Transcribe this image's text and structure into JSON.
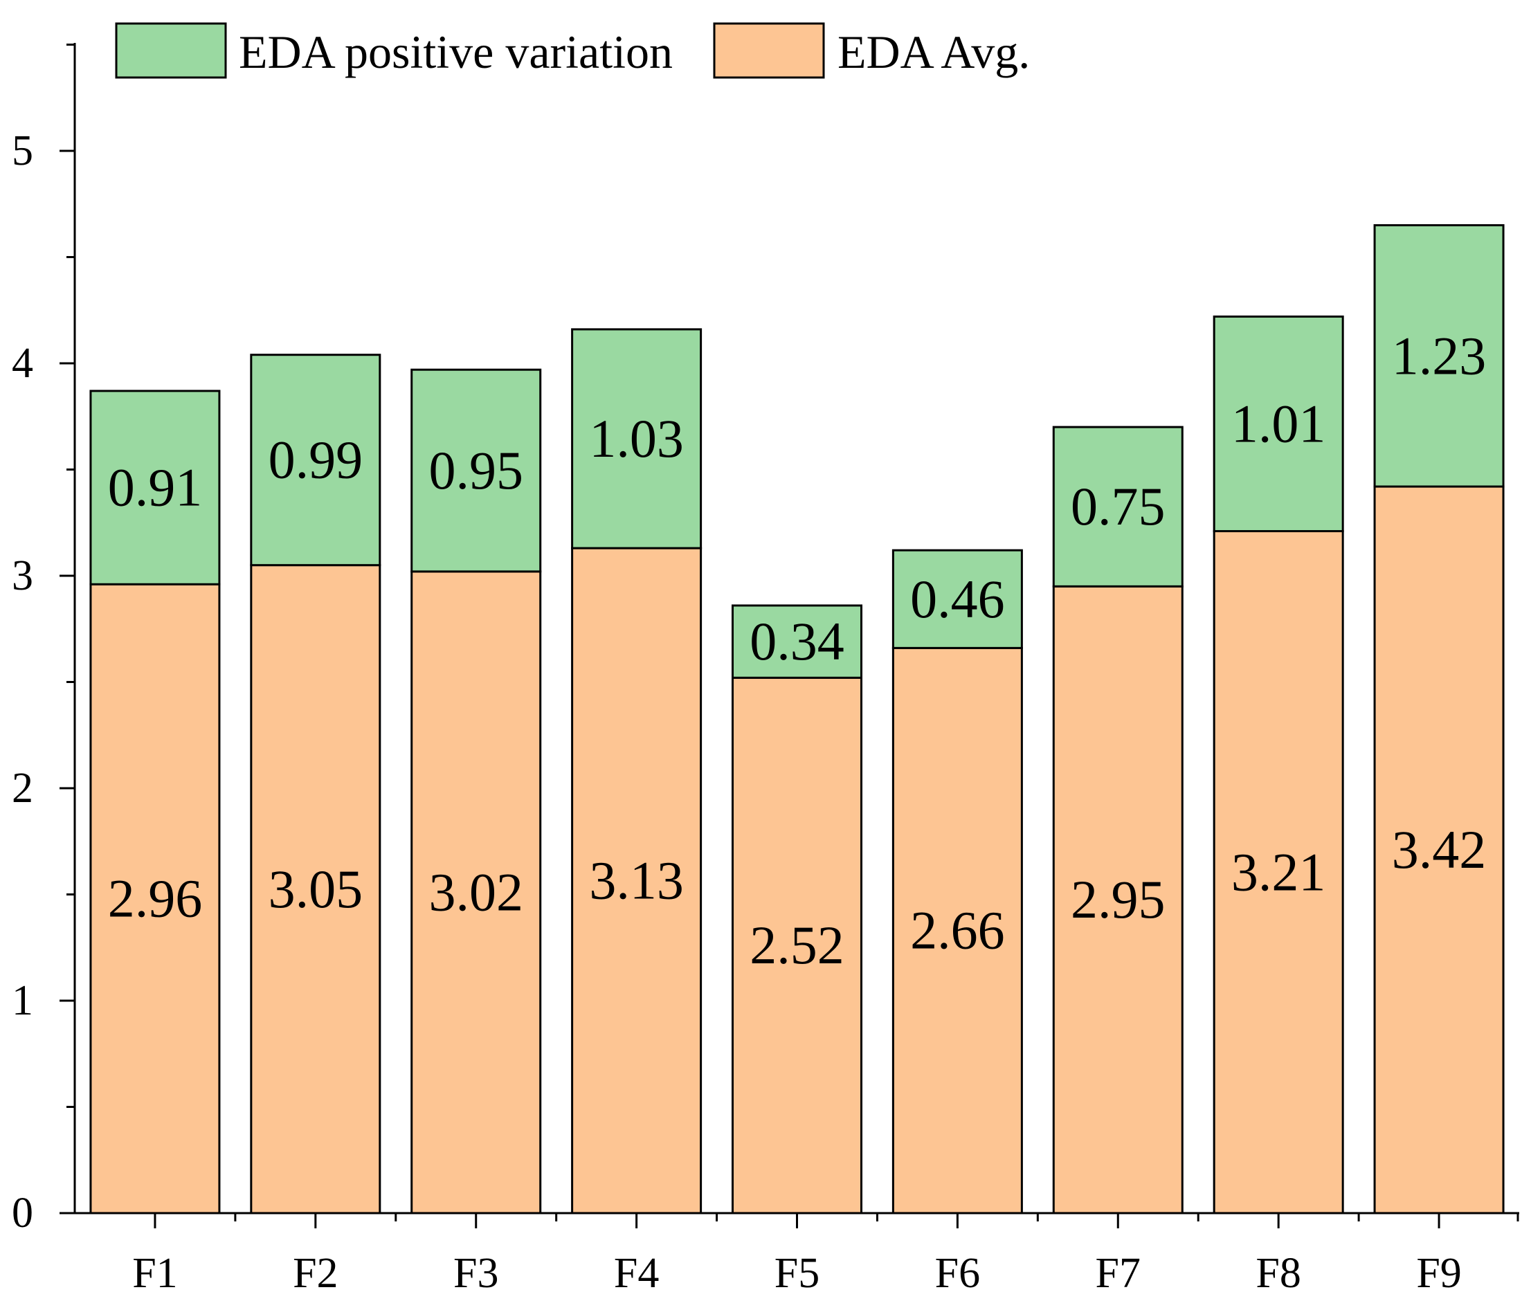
{
  "chart_data": {
    "type": "bar",
    "stacked": true,
    "categories": [
      "F1",
      "F2",
      "F3",
      "F4",
      "F5",
      "F6",
      "F7",
      "F8",
      "F9"
    ],
    "series": [
      {
        "name": "EDA Avg.",
        "color": "#FDC593",
        "values": [
          2.96,
          3.05,
          3.02,
          3.13,
          2.52,
          2.66,
          2.95,
          3.21,
          3.42
        ],
        "labels": [
          "2.96",
          "3.05",
          "3.02",
          "3.13",
          "2.52",
          "2.66",
          "2.95",
          "3.21",
          "3.42"
        ]
      },
      {
        "name": "EDA positive variation",
        "color": "#9AD9A1",
        "values": [
          0.91,
          0.99,
          0.95,
          1.03,
          0.34,
          0.46,
          0.75,
          1.01,
          1.23
        ],
        "labels": [
          "0.91",
          "0.99",
          "0.95",
          "1.03",
          "0.34",
          "0.46",
          "0.75",
          "1.01",
          "1.23"
        ]
      }
    ],
    "legend": [
      {
        "name": "EDA positive variation",
        "color": "#9AD9A1"
      },
      {
        "name": "EDA Avg.",
        "color": "#FDC593"
      }
    ],
    "legend_position": "top-left",
    "title": "",
    "xlabel": "",
    "ylabel": "",
    "ylim": [
      0,
      5.6
    ],
    "yticks": [
      0,
      1,
      2,
      3,
      4,
      5
    ],
    "ytick_labels": [
      "0",
      "1",
      "2",
      "3",
      "4",
      "5"
    ],
    "grid": false
  }
}
